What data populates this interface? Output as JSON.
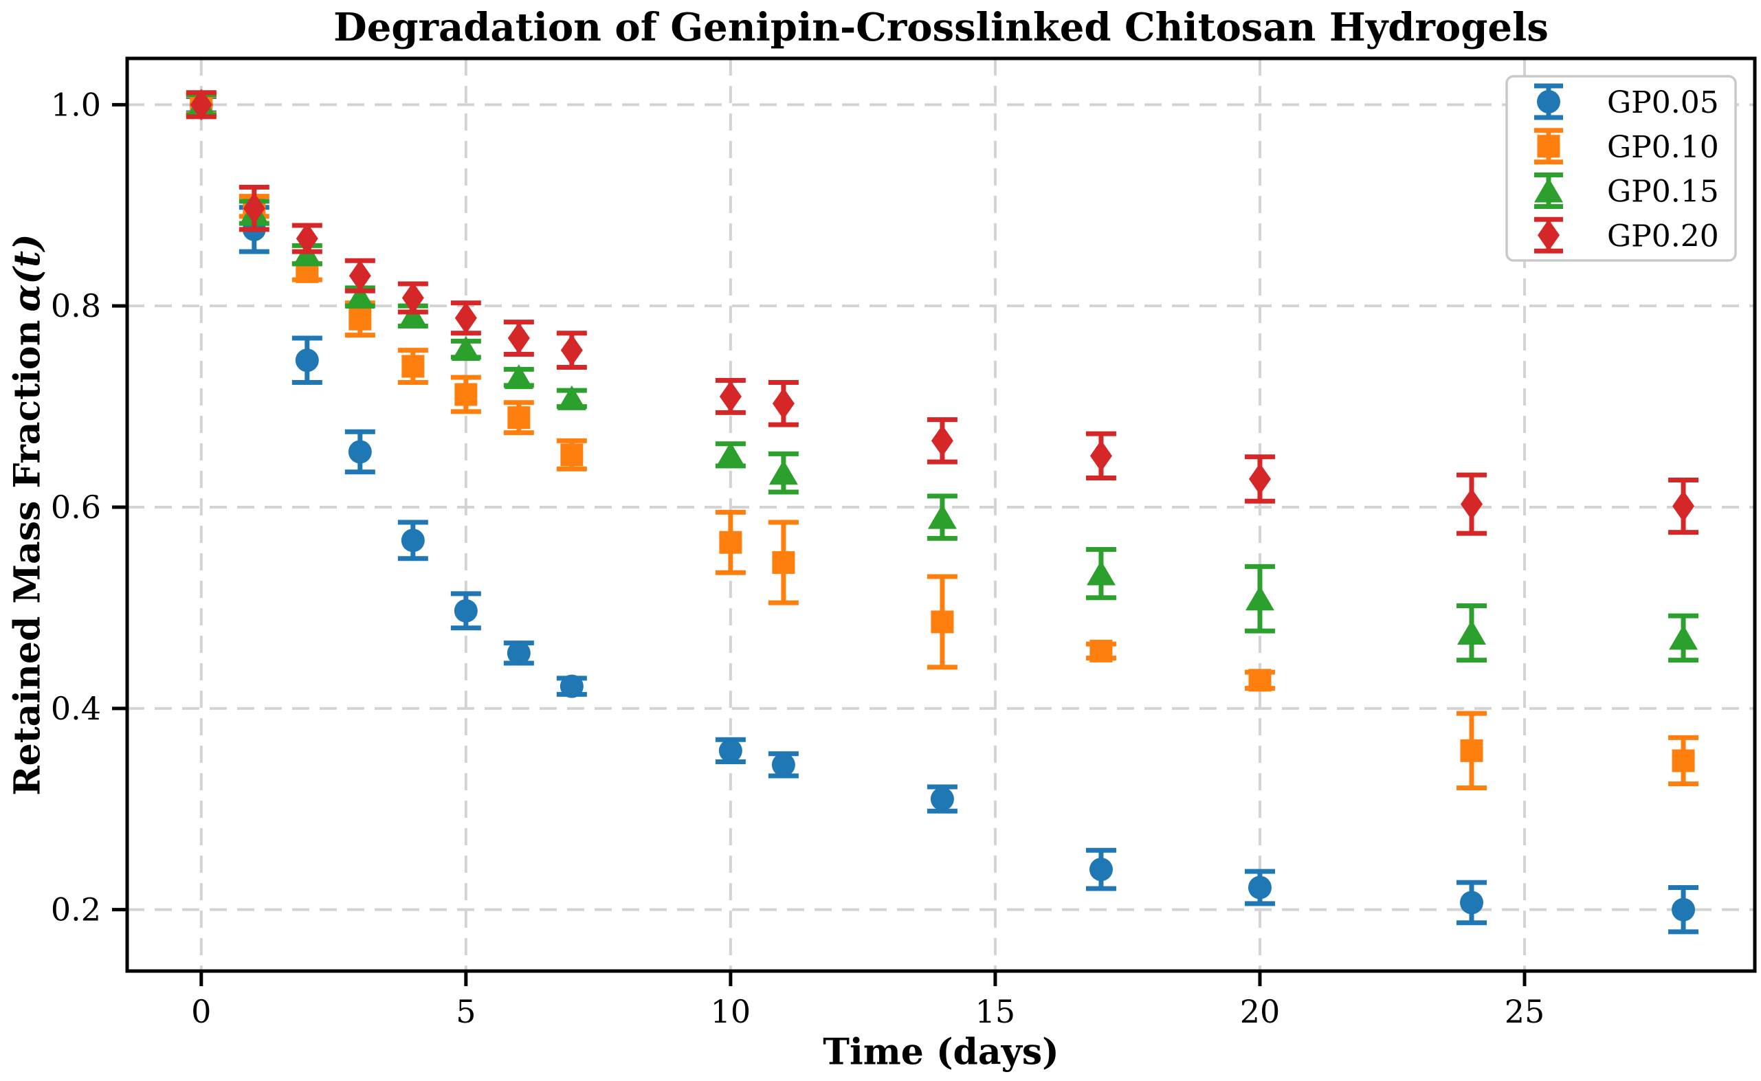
{
  "chart_data": {
    "type": "scatter",
    "title": "Degradation of Genipin-Crosslinked Chitosan Hydrogels",
    "xlabel": "Time (days)",
    "ylabel": "Retained Mass Fraction",
    "ylabel_math": "α(t)",
    "x": [
      0,
      1,
      2,
      3,
      4,
      5,
      6,
      7,
      10,
      11,
      14,
      17,
      20,
      24,
      28
    ],
    "xticks": [
      0,
      5,
      10,
      15,
      20,
      25
    ],
    "x_tick_labels": [
      "0",
      "5",
      "10",
      "15",
      "20",
      "25"
    ],
    "yticks": [
      0.2,
      0.4,
      0.6,
      0.8,
      1.0
    ],
    "y_tick_labels": [
      "0.2",
      "0.4",
      "0.6",
      "0.8",
      "1.0"
    ],
    "xlim": [
      -1.4,
      29.35
    ],
    "ylim": [
      0.139,
      1.046
    ],
    "grid": true,
    "grid_style": "dashed",
    "grid_color": "#d3d3d3",
    "axis_color": "#000000",
    "legend_position": "upper right",
    "legend_border_color": "#c9c9c9",
    "series": [
      {
        "name": "GP0.05",
        "marker": "circle",
        "color": "#1f77b4",
        "values": [
          1.0,
          0.876,
          0.746,
          0.655,
          0.567,
          0.497,
          0.455,
          0.422,
          0.358,
          0.344,
          0.31,
          0.24,
          0.222,
          0.207,
          0.2
        ],
        "errors": [
          0.008,
          0.022,
          0.022,
          0.02,
          0.018,
          0.017,
          0.01,
          0.008,
          0.011,
          0.011,
          0.012,
          0.019,
          0.016,
          0.02,
          0.022
        ]
      },
      {
        "name": "GP0.10",
        "marker": "square",
        "color": "#ff7f0e",
        "values": [
          1.0,
          0.899,
          0.834,
          0.787,
          0.74,
          0.712,
          0.689,
          0.652,
          0.565,
          0.545,
          0.486,
          0.457,
          0.428,
          0.358,
          0.348
        ],
        "errors": [
          0.009,
          0.01,
          0.008,
          0.016,
          0.016,
          0.017,
          0.015,
          0.014,
          0.03,
          0.04,
          0.045,
          0.007,
          0.008,
          0.037,
          0.023
        ]
      },
      {
        "name": "GP0.15",
        "marker": "triangle",
        "color": "#2ca02c",
        "values": [
          1.0,
          0.893,
          0.851,
          0.809,
          0.79,
          0.757,
          0.729,
          0.708,
          0.652,
          0.634,
          0.59,
          0.534,
          0.509,
          0.475,
          0.47
        ],
        "errors": [
          0.01,
          0.011,
          0.009,
          0.009,
          0.01,
          0.008,
          0.008,
          0.008,
          0.011,
          0.019,
          0.021,
          0.024,
          0.032,
          0.027,
          0.022
        ]
      },
      {
        "name": "GP0.20",
        "marker": "diamond",
        "color": "#d62728",
        "values": [
          1.0,
          0.897,
          0.867,
          0.83,
          0.808,
          0.788,
          0.768,
          0.756,
          0.71,
          0.703,
          0.666,
          0.651,
          0.628,
          0.603,
          0.601
        ],
        "errors": [
          0.012,
          0.021,
          0.013,
          0.015,
          0.014,
          0.015,
          0.016,
          0.017,
          0.016,
          0.021,
          0.021,
          0.022,
          0.022,
          0.029,
          0.026
        ]
      }
    ]
  }
}
